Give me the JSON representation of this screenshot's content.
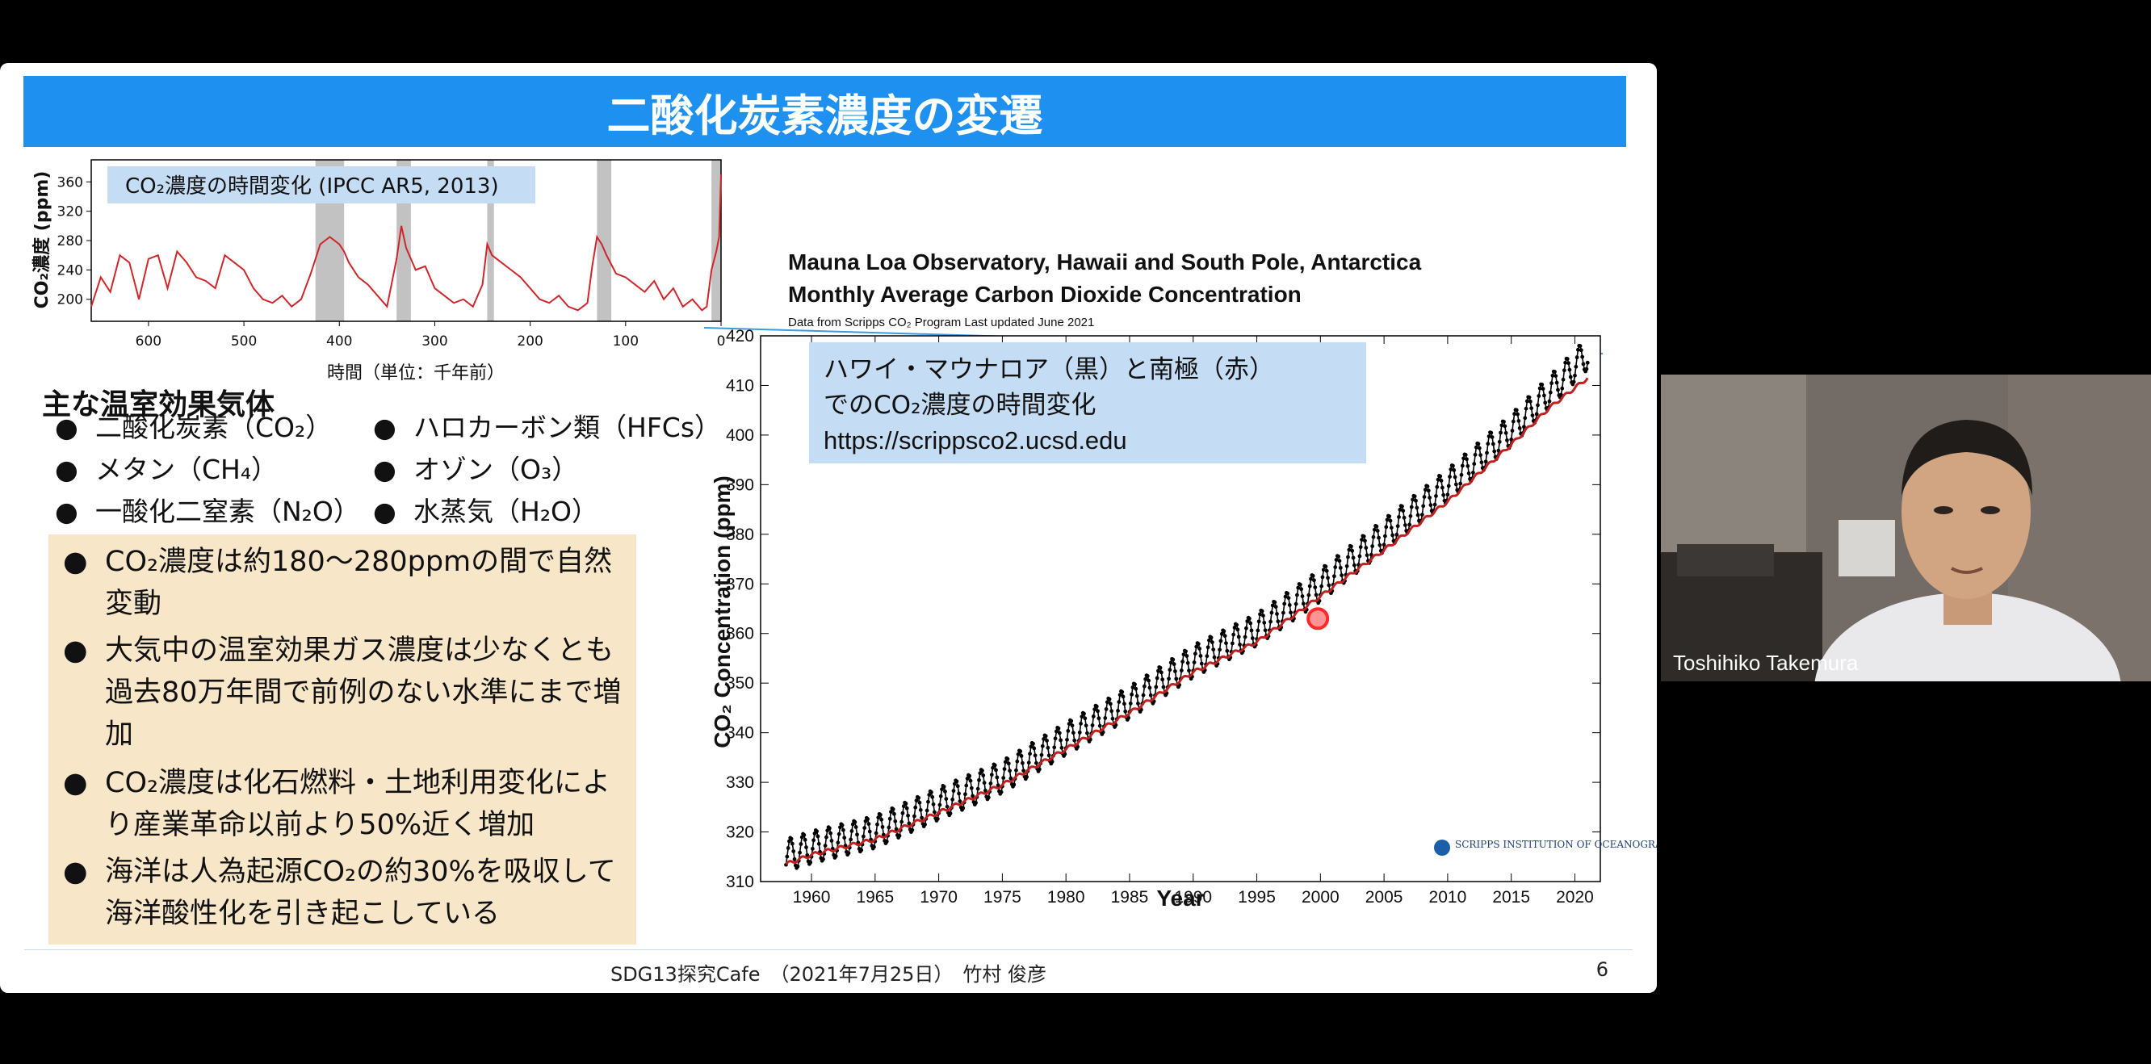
{
  "slide": {
    "title": "二酸化炭素濃度の変遷",
    "footer": "SDG13探究Cafe　（2021年7月25日）　竹村 俊彦",
    "page_number": "6"
  },
  "left_chart_labels": {
    "title": "CO₂濃度の時間変化 (IPCC AR5, 2013)",
    "ylabel": "CO₂濃度 (ppm)",
    "xlabel": "時間（単位：千年前）"
  },
  "greenhouse": {
    "heading": "主な温室効果気体",
    "col1": [
      "二酸化炭素（CO₂）",
      "メタン（CH₄）",
      "一酸化二窒素（N₂O）"
    ],
    "col2": [
      "ハロカーボン類（HFCs）",
      "オゾン（O₃）",
      "水蒸気（H₂O）"
    ]
  },
  "summary": {
    "item1": "CO₂濃度は約180〜280ppmの間で自然変動",
    "item2": "大気中の温室効果ガス濃度は少なくとも過去80万年間で前例のない水準にまで増加",
    "item3": "CO₂濃度は化石燃料・土地利用変化により産業革命以前より50%近く増加",
    "item4": "海洋は人為起源CO₂の約30%を吸収して海洋酸性化を引き起こしている"
  },
  "right_chart_labels": {
    "title1": "Mauna Loa Observatory, Hawaii and South Pole, Antarctica",
    "title2": "Monthly Average Carbon Dioxide Concentration",
    "source": "Data from Scripps CO₂ Program    Last updated June 2021",
    "annotation1": "ハワイ・マウナロア（黒）と南極（赤）",
    "annotation2": "でのCO₂濃度の時間変化",
    "annotation3": "https://scrippsco2.ucsd.edu",
    "ylabel": "CO₂ Concentration (ppm)",
    "xlabel": "Year",
    "logo": "SCRIPPS INSTITUTION OF OCEANOGRAPHY"
  },
  "participant": {
    "name": "Toshihiko Takemura"
  },
  "colors": {
    "title_bar": "#1e90ef",
    "summary_bg": "#f8e6c9",
    "annotation_bg": "#c5dcf5",
    "mauna_loa": "#000000",
    "south_pole": "#c0201e",
    "ice_core": "#d0262a",
    "interglacial_band": "#9a9a9a"
  },
  "chart_data": [
    {
      "type": "line",
      "title": "CO₂濃度の時間変化 (IPCC AR5, 2013)",
      "xlabel": "時間（単位：千年前）",
      "ylabel": "CO₂濃度 (ppm)",
      "xlim": [
        660,
        0
      ],
      "ylim": [
        170,
        390
      ],
      "x_ticks": [
        600,
        500,
        400,
        300,
        200,
        100,
        0
      ],
      "y_ticks": [
        200,
        240,
        280,
        320,
        360
      ],
      "interglacial_bands": [
        [
          425,
          395
        ],
        [
          340,
          325
        ],
        [
          245,
          238
        ],
        [
          130,
          115
        ],
        [
          10,
          0
        ]
      ],
      "series": [
        {
          "x": [
            660,
            650,
            640,
            630,
            620,
            610,
            600,
            590,
            580,
            570,
            560,
            550,
            540,
            530,
            520,
            510,
            500,
            490,
            480,
            470,
            460,
            450,
            440,
            430,
            420,
            410,
            400,
            395,
            390,
            380,
            370,
            360,
            350,
            340,
            335,
            330,
            320,
            310,
            300,
            290,
            280,
            270,
            260,
            250,
            245,
            240,
            230,
            220,
            210,
            200,
            190,
            180,
            170,
            160,
            150,
            140,
            135,
            130,
            125,
            120,
            110,
            100,
            90,
            80,
            70,
            60,
            50,
            40,
            30,
            20,
            15,
            10,
            5,
            2,
            0
          ],
          "y": [
            190,
            230,
            210,
            260,
            250,
            200,
            255,
            260,
            215,
            265,
            250,
            230,
            225,
            215,
            260,
            250,
            240,
            215,
            200,
            195,
            205,
            190,
            200,
            235,
            275,
            285,
            275,
            265,
            250,
            230,
            220,
            205,
            190,
            255,
            300,
            270,
            240,
            245,
            215,
            205,
            195,
            200,
            190,
            220,
            275,
            260,
            250,
            240,
            230,
            215,
            200,
            195,
            205,
            190,
            185,
            195,
            245,
            285,
            275,
            260,
            235,
            230,
            220,
            210,
            225,
            200,
            215,
            190,
            200,
            185,
            190,
            240,
            265,
            285,
            370
          ]
        }
      ]
    },
    {
      "type": "line",
      "title": "Mauna Loa Observatory, Hawaii and South Pole, Antarctica Monthly Average Carbon Dioxide Concentration",
      "xlabel": "Year",
      "ylabel": "CO₂ Concentration (ppm)",
      "xlim": [
        1956,
        2022
      ],
      "ylim": [
        310,
        420
      ],
      "x_ticks": [
        1960,
        1965,
        1970,
        1975,
        1980,
        1985,
        1990,
        1995,
        2000,
        2005,
        2010,
        2015,
        2020
      ],
      "y_ticks": [
        310,
        320,
        330,
        340,
        350,
        360,
        370,
        380,
        390,
        400,
        410,
        420
      ],
      "highlight_point": [
        1999.8,
        363
      ],
      "series": [
        {
          "name": "ハワイ・マウナロア（黒）",
          "x": [
            1958,
            1960,
            1965,
            1970,
            1975,
            1980,
            1985,
            1990,
            1995,
            2000,
            2005,
            2010,
            2015,
            2018,
            2021
          ],
          "y": [
            315.3,
            316.9,
            320.0,
            325.7,
            331.1,
            338.8,
            346.1,
            354.4,
            360.8,
            369.7,
            379.8,
            389.9,
            401.0,
            408.7,
            416.5
          ],
          "seasonal_amplitude": 6.5
        },
        {
          "name": "南極（赤）",
          "x": [
            1958,
            1960,
            1965,
            1970,
            1975,
            1980,
            1985,
            1990,
            1995,
            2000,
            2005,
            2010,
            2015,
            2018,
            2021
          ],
          "y": [
            313.5,
            315.4,
            318.5,
            323.9,
            329.5,
            336.7,
            344.0,
            352.2,
            358.3,
            367.5,
            376.8,
            386.6,
            398.1,
            405.5,
            411.5
          ]
        }
      ]
    }
  ]
}
